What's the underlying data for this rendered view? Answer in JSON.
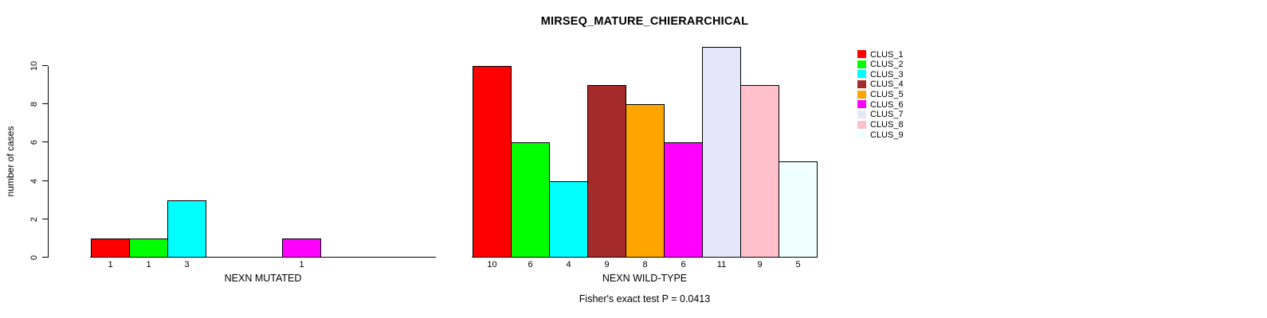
{
  "title": "MIRSEQ_MATURE_CHIERARCHICAL",
  "chart_data": {
    "type": "bar",
    "title": "MIRSEQ_MATURE_CHIERARCHICAL",
    "xlabel": "",
    "ylabel": "number of cases",
    "ylim": [
      0,
      11
    ],
    "yticks": [
      0,
      2,
      4,
      6,
      8,
      10
    ],
    "grid": false,
    "legend_position": "right-top",
    "clusters": [
      {
        "label": "CLUS_1",
        "color": "#FF0000"
      },
      {
        "label": "CLUS_2",
        "color": "#00FF00"
      },
      {
        "label": "CLUS_3",
        "color": "#00FFFF"
      },
      {
        "label": "CLUS_4",
        "color": "#A52A2A"
      },
      {
        "label": "CLUS_5",
        "color": "#FFA500"
      },
      {
        "label": "CLUS_6",
        "color": "#FF00FF"
      },
      {
        "label": "CLUS_7",
        "color": "#E6E6FA"
      },
      {
        "label": "CLUS_8",
        "color": "#FFC0CB"
      },
      {
        "label": "CLUS_9",
        "color": "#F0FFFF"
      }
    ],
    "groups": [
      {
        "label": "NEXN MUTATED",
        "values": [
          1,
          1,
          3,
          0,
          0,
          1,
          0,
          0,
          0
        ]
      },
      {
        "label": "NEXN WILD-TYPE",
        "values": [
          10,
          6,
          4,
          9,
          8,
          6,
          11,
          9,
          5
        ]
      }
    ],
    "annotation": "Fisher's exact test P = 0.0413"
  }
}
